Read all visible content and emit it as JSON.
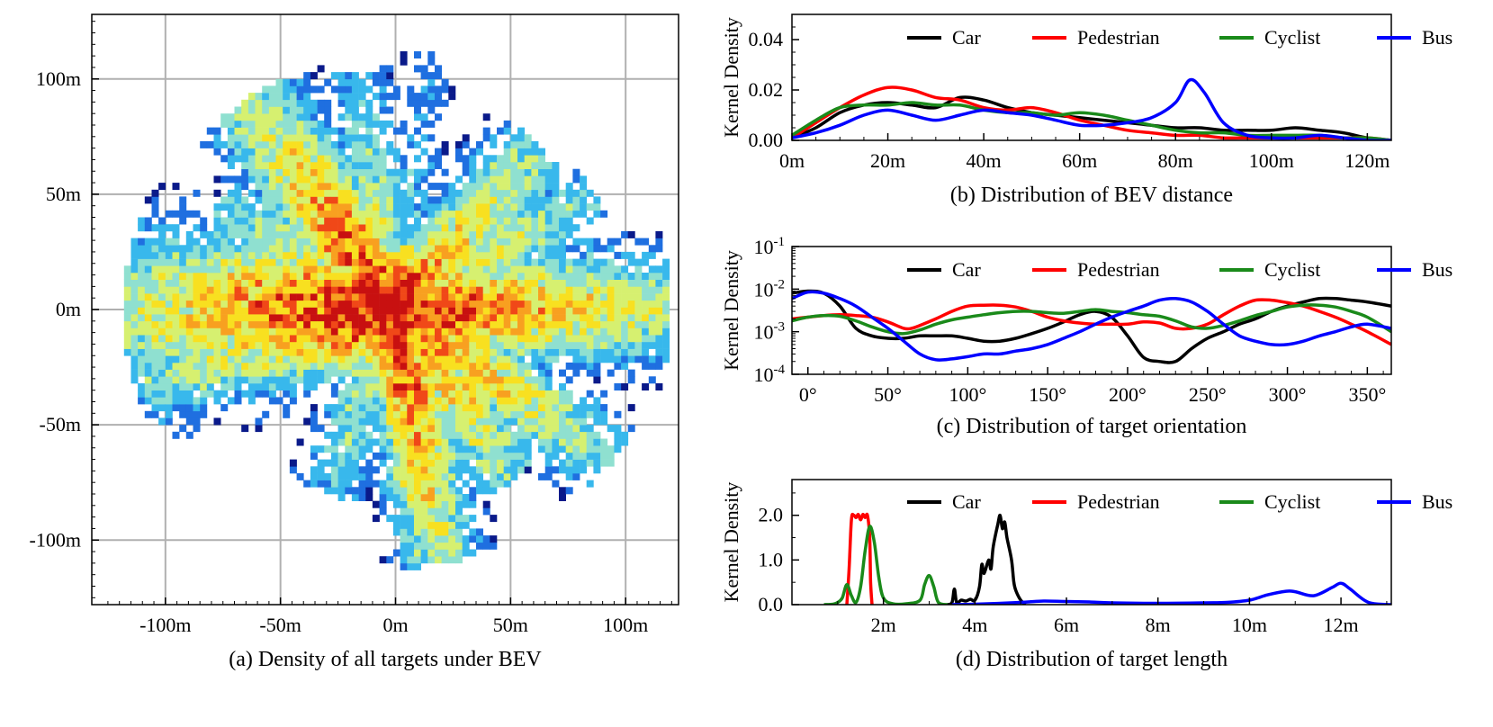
{
  "chart_data": [
    {
      "id": "a",
      "type": "heatmap",
      "caption": "(a) Density of all targets under BEV",
      "xlim": [
        -132,
        123
      ],
      "ylim": [
        -128,
        128
      ],
      "xticks": [
        -100,
        -50,
        0,
        50,
        100
      ],
      "xtick_labels": [
        "-100m",
        "-50m",
        "0m",
        "50m",
        "100m"
      ],
      "yticks": [
        -100,
        -50,
        0,
        50,
        100
      ],
      "ytick_labels": [
        "-100m",
        "-50m",
        "0m",
        "50m",
        "100m"
      ],
      "grid": true,
      "colormap": [
        "#0a1a8a",
        "#1f6fe0",
        "#38b8ec",
        "#8fe0d0",
        "#d6f070",
        "#f8e020",
        "#f8a020",
        "#f04818",
        "#c81010"
      ],
      "extent": {
        "xmin": -118,
        "xmax": 120,
        "ymin": -116,
        "ymax": 112
      },
      "rays": [
        {
          "angle_deg": 180,
          "length": 118,
          "spread": 14,
          "weight": 1.0
        },
        {
          "angle_deg": 0,
          "length": 120,
          "spread": 9,
          "weight": 0.95
        },
        {
          "angle_deg": 125,
          "length": 112,
          "spread": 8,
          "weight": 0.95
        },
        {
          "angle_deg": 100,
          "length": 105,
          "spread": 5,
          "weight": 0.6
        },
        {
          "angle_deg": 48,
          "length": 95,
          "spread": 7,
          "weight": 0.8
        },
        {
          "angle_deg": 30,
          "length": 100,
          "spread": 5,
          "weight": 0.7
        },
        {
          "angle_deg": 150,
          "length": 90,
          "spread": 6,
          "weight": 0.7
        },
        {
          "angle_deg": 195,
          "length": 115,
          "spread": 8,
          "weight": 0.8
        },
        {
          "angle_deg": 280,
          "length": 112,
          "spread": 6,
          "weight": 0.95
        },
        {
          "angle_deg": 305,
          "length": 90,
          "spread": 6,
          "weight": 0.85
        },
        {
          "angle_deg": 325,
          "length": 115,
          "spread": 6,
          "weight": 0.8
        },
        {
          "angle_deg": 250,
          "length": 85,
          "spread": 5,
          "weight": 0.6
        },
        {
          "angle_deg": 82,
          "length": 112,
          "spread": 3,
          "weight": 0.4
        },
        {
          "angle_deg": 15,
          "length": 90,
          "spread": 5,
          "weight": 0.6
        }
      ]
    },
    {
      "id": "b",
      "type": "line",
      "caption": "(b) Distribution of BEV distance",
      "ylabel": "Kernel Density",
      "xlim": [
        0,
        125
      ],
      "ylim": [
        0,
        0.05
      ],
      "xticks": [
        0,
        20,
        40,
        60,
        80,
        100,
        120
      ],
      "xtick_labels": [
        "0m",
        "20m",
        "40m",
        "60m",
        "80m",
        "100m",
        "120m"
      ],
      "yticks": [
        0,
        0.02,
        0.04
      ],
      "ytick_labels": [
        "0.00",
        "0.02",
        "0.04"
      ],
      "legend_position": "top",
      "series": [
        {
          "name": "Car",
          "color": "#000000",
          "x": [
            0,
            5,
            10,
            15,
            20,
            25,
            30,
            35,
            40,
            45,
            50,
            55,
            60,
            65,
            70,
            75,
            80,
            85,
            90,
            95,
            100,
            105,
            110,
            115,
            120,
            125
          ],
          "y": [
            0.001,
            0.005,
            0.011,
            0.014,
            0.015,
            0.014,
            0.013,
            0.017,
            0.016,
            0.013,
            0.011,
            0.01,
            0.009,
            0.008,
            0.007,
            0.006,
            0.005,
            0.005,
            0.004,
            0.004,
            0.004,
            0.005,
            0.004,
            0.003,
            0.001,
            0.0
          ]
        },
        {
          "name": "Pedestrian",
          "color": "#ff0000",
          "x": [
            0,
            5,
            10,
            15,
            20,
            25,
            30,
            35,
            40,
            45,
            50,
            55,
            60,
            65,
            70,
            75,
            80,
            85,
            90,
            95,
            100,
            105,
            110,
            115,
            120,
            125
          ],
          "y": [
            0.001,
            0.007,
            0.013,
            0.018,
            0.021,
            0.02,
            0.017,
            0.016,
            0.013,
            0.012,
            0.013,
            0.011,
            0.008,
            0.006,
            0.004,
            0.003,
            0.002,
            0.002,
            0.001,
            0.001,
            0.001,
            0.001,
            0.001,
            0.001,
            0.001,
            0.0
          ]
        },
        {
          "name": "Cyclist",
          "color": "#1a8a1a",
          "x": [
            0,
            5,
            10,
            15,
            20,
            25,
            30,
            35,
            40,
            45,
            50,
            55,
            60,
            65,
            70,
            75,
            80,
            85,
            90,
            95,
            100,
            105,
            110,
            115,
            120,
            125
          ],
          "y": [
            0.002,
            0.008,
            0.013,
            0.014,
            0.014,
            0.015,
            0.014,
            0.014,
            0.012,
            0.011,
            0.011,
            0.01,
            0.011,
            0.01,
            0.008,
            0.006,
            0.004,
            0.003,
            0.003,
            0.002,
            0.002,
            0.002,
            0.002,
            0.001,
            0.001,
            0.0
          ]
        },
        {
          "name": "Bus",
          "color": "#0000ff",
          "x": [
            0,
            5,
            10,
            15,
            20,
            25,
            30,
            35,
            40,
            45,
            50,
            55,
            60,
            65,
            70,
            75,
            80,
            83,
            86,
            90,
            95,
            100,
            105,
            110,
            115,
            120,
            125
          ],
          "y": [
            0.001,
            0.003,
            0.006,
            0.01,
            0.012,
            0.01,
            0.008,
            0.01,
            0.012,
            0.011,
            0.01,
            0.008,
            0.006,
            0.006,
            0.007,
            0.009,
            0.015,
            0.024,
            0.019,
            0.007,
            0.002,
            0.001,
            0.001,
            0.002,
            0.001,
            0.0,
            0.0
          ]
        }
      ]
    },
    {
      "id": "c",
      "type": "line",
      "caption": "(c) Distribution of target orientation",
      "ylabel": "Kernel Density",
      "yscale": "log",
      "xlim": [
        -10,
        365
      ],
      "ylim": [
        0.0001,
        0.1
      ],
      "xticks": [
        0,
        50,
        100,
        150,
        200,
        250,
        300,
        350
      ],
      "xtick_labels": [
        "0°",
        "50°",
        "100°",
        "150°",
        "200°",
        "250°",
        "300°",
        "350°"
      ],
      "yticks": [
        0.0001,
        0.001,
        0.01,
        0.1
      ],
      "legend_position": "top",
      "series": [
        {
          "name": "Car",
          "color": "#000000",
          "x": [
            -10,
            0,
            10,
            20,
            30,
            40,
            50,
            60,
            70,
            80,
            90,
            100,
            110,
            120,
            130,
            140,
            150,
            160,
            170,
            180,
            190,
            200,
            210,
            220,
            230,
            240,
            250,
            260,
            270,
            280,
            290,
            300,
            310,
            320,
            330,
            340,
            350,
            365
          ],
          "y": [
            0.008,
            0.009,
            0.008,
            0.004,
            0.0012,
            0.0008,
            0.0007,
            0.0007,
            0.0008,
            0.0008,
            0.0008,
            0.0007,
            0.0006,
            0.0006,
            0.0007,
            0.0009,
            0.0012,
            0.0017,
            0.0025,
            0.003,
            0.0022,
            0.0008,
            0.00025,
            0.0002,
            0.0002,
            0.0004,
            0.0007,
            0.001,
            0.0015,
            0.002,
            0.003,
            0.004,
            0.005,
            0.006,
            0.006,
            0.0055,
            0.005,
            0.004
          ]
        },
        {
          "name": "Pedestrian",
          "color": "#ff0000",
          "x": [
            -10,
            0,
            10,
            20,
            30,
            40,
            50,
            60,
            65,
            70,
            80,
            90,
            100,
            110,
            120,
            130,
            140,
            150,
            160,
            170,
            180,
            190,
            200,
            210,
            220,
            230,
            240,
            250,
            260,
            270,
            280,
            290,
            300,
            310,
            320,
            330,
            340,
            350,
            365
          ],
          "y": [
            0.002,
            0.0022,
            0.0024,
            0.0025,
            0.0024,
            0.0022,
            0.0017,
            0.0012,
            0.0012,
            0.0014,
            0.002,
            0.003,
            0.004,
            0.0042,
            0.0042,
            0.0038,
            0.003,
            0.0022,
            0.0018,
            0.0016,
            0.0015,
            0.0015,
            0.0015,
            0.0017,
            0.0016,
            0.0012,
            0.0012,
            0.0015,
            0.0025,
            0.004,
            0.0055,
            0.0055,
            0.0048,
            0.004,
            0.003,
            0.0022,
            0.0015,
            0.001,
            0.0005
          ]
        },
        {
          "name": "Cyclist",
          "color": "#1a8a1a",
          "x": [
            -10,
            0,
            10,
            20,
            30,
            40,
            50,
            60,
            70,
            80,
            90,
            100,
            110,
            120,
            130,
            140,
            150,
            160,
            170,
            180,
            190,
            200,
            210,
            220,
            230,
            240,
            250,
            260,
            270,
            280,
            290,
            300,
            310,
            320,
            330,
            340,
            350,
            365
          ],
          "y": [
            0.0018,
            0.0022,
            0.0024,
            0.0023,
            0.0018,
            0.0013,
            0.001,
            0.0009,
            0.0011,
            0.0015,
            0.0019,
            0.0022,
            0.0025,
            0.0028,
            0.003,
            0.003,
            0.0028,
            0.0027,
            0.003,
            0.0033,
            0.003,
            0.0028,
            0.0025,
            0.0023,
            0.0018,
            0.0013,
            0.0012,
            0.0014,
            0.0018,
            0.0024,
            0.003,
            0.0038,
            0.0042,
            0.0042,
            0.0038,
            0.003,
            0.0022,
            0.001
          ]
        },
        {
          "name": "Bus",
          "color": "#0000ff",
          "x": [
            -10,
            0,
            10,
            20,
            30,
            40,
            50,
            60,
            70,
            80,
            90,
            100,
            110,
            120,
            130,
            140,
            150,
            160,
            170,
            180,
            190,
            200,
            210,
            220,
            230,
            240,
            250,
            260,
            270,
            280,
            290,
            300,
            310,
            320,
            330,
            340,
            350,
            365
          ],
          "y": [
            0.006,
            0.0085,
            0.008,
            0.006,
            0.004,
            0.0022,
            0.0012,
            0.0006,
            0.0003,
            0.00022,
            0.00023,
            0.00026,
            0.0003,
            0.0003,
            0.00035,
            0.0004,
            0.0005,
            0.0007,
            0.001,
            0.0015,
            0.0022,
            0.003,
            0.004,
            0.0055,
            0.006,
            0.005,
            0.003,
            0.0015,
            0.0008,
            0.0006,
            0.0005,
            0.0005,
            0.0006,
            0.0008,
            0.001,
            0.0013,
            0.0015,
            0.0012
          ]
        }
      ]
    },
    {
      "id": "d",
      "type": "line",
      "caption": "(d) Distribution of target length",
      "ylabel": "Kernel Density",
      "xlim": [
        0,
        13.1
      ],
      "ylim": [
        0,
        2.8
      ],
      "xticks": [
        2,
        4,
        6,
        8,
        10,
        12
      ],
      "xtick_labels": [
        "2m",
        "4m",
        "6m",
        "8m",
        "10m",
        "12m"
      ],
      "yticks": [
        0,
        1,
        2
      ],
      "ytick_labels": [
        "0.0",
        "1.0",
        "2.0"
      ],
      "legend_position": "top",
      "series": [
        {
          "name": "Car",
          "color": "#000000",
          "x": [
            3.4,
            3.5,
            3.55,
            3.6,
            3.7,
            3.8,
            3.9,
            4.0,
            4.1,
            4.15,
            4.2,
            4.3,
            4.35,
            4.4,
            4.5,
            4.55,
            4.6,
            4.65,
            4.7,
            4.8,
            4.85,
            4.9,
            5.0,
            5.1
          ],
          "y": [
            0.0,
            0.05,
            0.35,
            0.05,
            0.1,
            0.08,
            0.12,
            0.1,
            0.4,
            0.9,
            0.7,
            1.0,
            0.8,
            1.3,
            1.8,
            2.0,
            1.7,
            1.85,
            1.5,
            1.0,
            0.5,
            0.3,
            0.1,
            0.0
          ]
        },
        {
          "name": "Pedestrian",
          "color": "#ff0000",
          "x": [
            1.2,
            1.25,
            1.3,
            1.35,
            1.4,
            1.45,
            1.5,
            1.55,
            1.6,
            1.65,
            1.7,
            1.72,
            1.75
          ],
          "y": [
            0.0,
            0.8,
            1.9,
            2.0,
            1.95,
            2.02,
            1.9,
            2.02,
            1.95,
            2.0,
            1.5,
            0.5,
            0.0
          ]
        },
        {
          "name": "Cyclist",
          "color": "#1a8a1a",
          "x": [
            0.7,
            0.9,
            1.0,
            1.1,
            1.2,
            1.3,
            1.4,
            1.5,
            1.6,
            1.7,
            1.8,
            1.9,
            2.0,
            2.2,
            2.5,
            2.8,
            2.9,
            3.0,
            3.1,
            3.2,
            3.4
          ],
          "y": [
            0.0,
            0.01,
            0.05,
            0.15,
            0.45,
            0.2,
            0.05,
            0.4,
            1.2,
            1.75,
            1.4,
            0.6,
            0.15,
            0.02,
            0.02,
            0.1,
            0.45,
            0.65,
            0.4,
            0.05,
            0.0
          ]
        },
        {
          "name": "Bus",
          "color": "#0000ff",
          "x": [
            3.5,
            4.0,
            5.0,
            5.5,
            6.0,
            6.5,
            7.0,
            8.0,
            9.0,
            9.5,
            10.0,
            10.4,
            10.8,
            11.0,
            11.4,
            11.8,
            12.0,
            12.2,
            12.6,
            13.1
          ],
          "y": [
            0.0,
            0.01,
            0.05,
            0.08,
            0.07,
            0.06,
            0.04,
            0.03,
            0.04,
            0.05,
            0.1,
            0.22,
            0.3,
            0.29,
            0.2,
            0.38,
            0.48,
            0.35,
            0.05,
            0.0
          ]
        }
      ]
    }
  ]
}
